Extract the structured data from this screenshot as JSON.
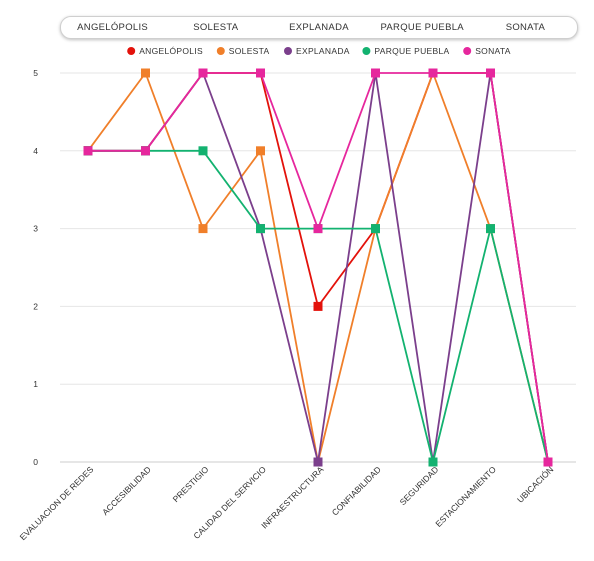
{
  "tabs": [
    {
      "label": "ANGELÓPOLIS"
    },
    {
      "label": "SOLESTA"
    },
    {
      "label": "EXPLANADA"
    },
    {
      "label": "PARQUE PUEBLA"
    },
    {
      "label": "SONATA"
    }
  ],
  "chart_data": {
    "type": "line",
    "categories": [
      "EVALUACION DE REDES",
      "ACCESIBILIDAD",
      "PRESTIGIO",
      "CALIDAD DEL SERVICIO",
      "INFRAESTRUCTURA",
      "CONFIABILIDAD",
      "SEGURIDAD",
      "ESTACIONAMIENTO",
      "UBICACIÓN"
    ],
    "ylim": [
      0,
      5
    ],
    "yticks": [
      0,
      1,
      2,
      3,
      4,
      5
    ],
    "grid": true,
    "legend_position": "top",
    "series": [
      {
        "name": "ANGELÓPOLIS",
        "color": "#e3120b",
        "marker": "circle",
        "values": [
          4,
          4,
          5,
          5,
          2,
          3,
          5,
          5,
          0
        ]
      },
      {
        "name": "SOLESTA",
        "color": "#f07f2a",
        "marker": "circle",
        "values": [
          4,
          5,
          3,
          4,
          0,
          3,
          5,
          3,
          0
        ]
      },
      {
        "name": "EXPLANADA",
        "color": "#7b3f8c",
        "marker": "circle",
        "values": [
          4,
          4,
          5,
          3,
          0,
          5,
          0,
          5,
          0
        ]
      },
      {
        "name": "PARQUE PUEBLA",
        "color": "#13b270",
        "marker": "circle",
        "values": [
          4,
          4,
          4,
          3,
          3,
          3,
          0,
          3,
          0
        ]
      },
      {
        "name": "SONATA",
        "color": "#e6279d",
        "marker": "circle",
        "values": [
          4,
          4,
          5,
          5,
          3,
          5,
          5,
          5,
          0
        ]
      }
    ]
  }
}
